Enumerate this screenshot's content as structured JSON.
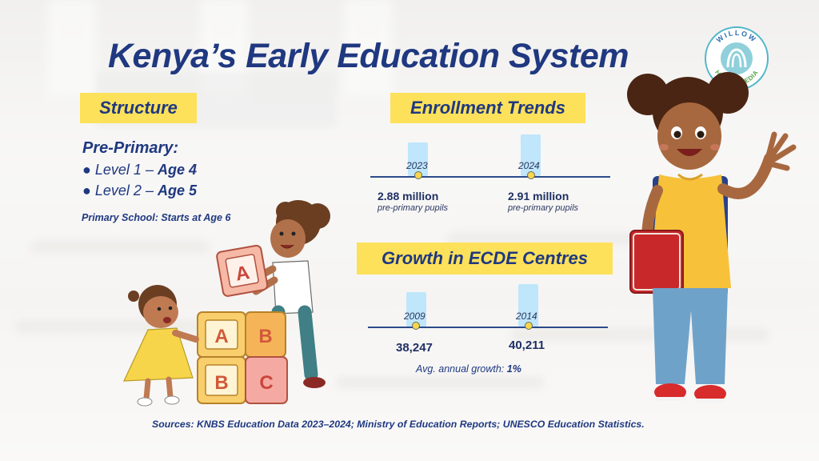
{
  "title": "Kenya’s Early Education System",
  "brand": {
    "logo_text_top": "WILLOW",
    "logo_text_bottom": "HEALTH MEDIA"
  },
  "structure": {
    "heading": "Structure",
    "pre_primary_heading": "Pre-Primary:",
    "levels": [
      {
        "bullet": "●",
        "label": "Level 1",
        "dash": "–",
        "age": "Age 4"
      },
      {
        "bullet": "●",
        "label": "Level 2",
        "dash": "–",
        "age": "Age 5"
      }
    ],
    "primary_note": "Primary School:  Starts at Age 6"
  },
  "enrollment": {
    "heading": "Enrollment Trends",
    "items": [
      {
        "year": "2023",
        "value": "2.88 million",
        "unit": "pre-primary pupils",
        "number": 2.88
      },
      {
        "year": "2024",
        "value": "2.91 million",
        "unit": "pre-primary pupils",
        "number": 2.91
      }
    ]
  },
  "growth": {
    "heading": "Growth in ECDE Centres",
    "items": [
      {
        "year": "2009",
        "value": "38,247",
        "number": 38247
      },
      {
        "year": "2014",
        "value": "40,211",
        "number": 40211
      }
    ],
    "avg_label": "Avg. annual growth:",
    "avg_value": "1%"
  },
  "sources": "Sources: KNBS Education Data 2023–2024; Ministry of Education Reports; UNESCO Education Statistics.",
  "blocks": {
    "a": "A",
    "b": "B",
    "c": "C"
  },
  "colors": {
    "title": "#1f3880",
    "tag_yellow": "#fde15a",
    "bar_blue": "#bfe6fb",
    "dot_yellow": "#f6d64c",
    "axis": "#2c4a8a"
  }
}
